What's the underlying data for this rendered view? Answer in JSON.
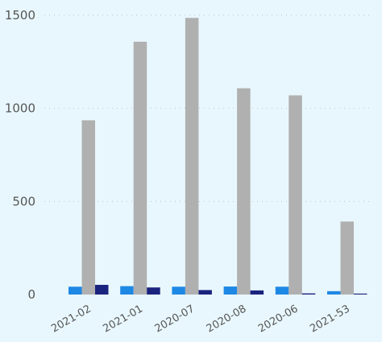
{
  "chart_data": {
    "type": "bar",
    "categories": [
      "2021-02",
      "2021-01",
      "2020-07",
      "2020-08",
      "2020-06",
      "2021-53"
    ],
    "series": [
      {
        "values": [
          42,
          45,
          42,
          43,
          42,
          18
        ],
        "color": "#1e88e5"
      },
      {
        "values": [
          936,
          1358,
          1486,
          1108,
          1070,
          392
        ],
        "color": "#b0b0b0"
      },
      {
        "values": [
          52,
          38,
          24,
          22,
          6,
          5
        ],
        "color": "#1a237e"
      }
    ],
    "yticks": [
      0,
      500,
      1000,
      1500
    ],
    "ylim": [
      0,
      1500
    ],
    "grid": true,
    "legend": "none"
  }
}
